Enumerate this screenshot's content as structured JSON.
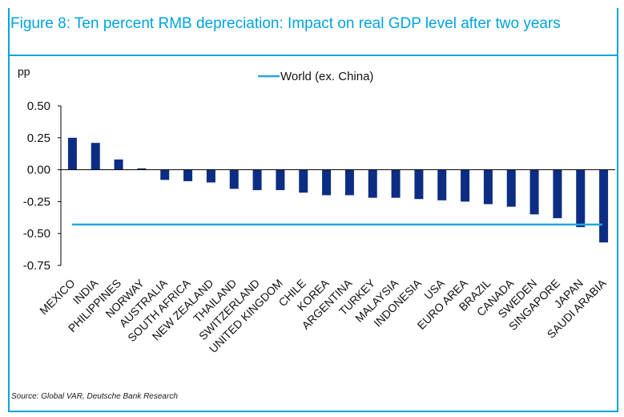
{
  "figure": {
    "title": "Figure 8: Ten percent RMB depreciation: Impact on real GDP level after two years",
    "source": "Source: Global VAR, Deutsche Bank Research"
  },
  "colors": {
    "accent": "#00a3e0",
    "bar": "#0c2d83",
    "world_line": "#1fa8e0"
  },
  "chart_data": {
    "type": "bar",
    "title": "Figure 8: Ten percent RMB depreciation: Impact on real GDP level after two years",
    "ylabel": "pp",
    "xlabel": "",
    "ylim": [
      -0.75,
      0.5
    ],
    "yticks": [
      "0.50",
      "0.25",
      "0.00",
      "-0.25",
      "-0.50",
      "-0.75"
    ],
    "ytick_values": [
      0.5,
      0.25,
      0.0,
      -0.25,
      -0.5,
      -0.75
    ],
    "grid": false,
    "legend_position": "top-center",
    "categories": [
      "MEXICO",
      "INDIA",
      "PHILIPPINES",
      "NORWAY",
      "AUSTRALIA",
      "SOUTH AFRICA",
      "NEW ZEALAND",
      "THAILAND",
      "SWITZERLAND",
      "UNITED KINGDOM",
      "CHILE",
      "KOREA",
      "ARGENTINA",
      "TURKEY",
      "MALAYSIA",
      "INDONESIA",
      "USA",
      "EURO AREA",
      "BRAZIL",
      "CANADA",
      "SWEDEN",
      "SINGAPORE",
      "JAPAN",
      "SAUDI ARABIA"
    ],
    "values": [
      0.25,
      0.21,
      0.08,
      0.01,
      -0.08,
      -0.09,
      -0.1,
      -0.15,
      -0.16,
      -0.16,
      -0.18,
      -0.2,
      -0.2,
      -0.22,
      -0.22,
      -0.23,
      -0.24,
      -0.25,
      -0.27,
      -0.29,
      -0.35,
      -0.38,
      -0.45,
      -0.57
    ],
    "reference_line": {
      "name": "World (ex. China)",
      "value": -0.43
    }
  }
}
